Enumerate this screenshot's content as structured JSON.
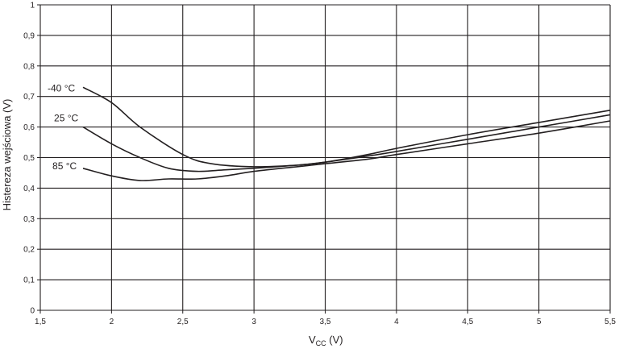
{
  "chart_data": {
    "type": "line",
    "ylabel": "Histereza wejściowa (V)",
    "xlabel_main": "V",
    "xlabel_sub": "CC",
    "xlabel_unit": " (V)",
    "xlim": [
      1.5,
      5.5
    ],
    "ylim": [
      0,
      1
    ],
    "grid": true,
    "xticks": [
      1.5,
      2,
      2.5,
      3,
      3.5,
      4,
      4.5,
      5,
      5.5
    ],
    "xtick_labels": [
      "1,5",
      "2",
      "2,5",
      "3",
      "3,5",
      "4",
      "4,5",
      "5",
      "5,5"
    ],
    "yticks": [
      0,
      0.1,
      0.2,
      0.3,
      0.4,
      0.5,
      0.6,
      0.7,
      0.8,
      0.9,
      1
    ],
    "ytick_labels": [
      "0",
      "0,1",
      "0,2",
      "0,3",
      "0,4",
      "0,5",
      "0,6",
      "0,7",
      "0,8",
      "0,9",
      "1"
    ],
    "series": [
      {
        "name": "-40 °C",
        "x": [
          1.8,
          2.0,
          2.2,
          2.5,
          2.7,
          3.0,
          3.3,
          3.5,
          3.8,
          4.0,
          4.5,
          5.0,
          5.5
        ],
        "y": [
          0.73,
          0.68,
          0.6,
          0.51,
          0.48,
          0.47,
          0.475,
          0.485,
          0.51,
          0.53,
          0.575,
          0.615,
          0.655
        ]
      },
      {
        "name": "25 °C",
        "x": [
          1.8,
          2.0,
          2.2,
          2.4,
          2.6,
          2.8,
          3.0,
          3.3,
          3.5,
          3.8,
          4.0,
          4.5,
          5.0,
          5.5
        ],
        "y": [
          0.6,
          0.545,
          0.5,
          0.465,
          0.455,
          0.46,
          0.465,
          0.475,
          0.485,
          0.505,
          0.52,
          0.56,
          0.6,
          0.64
        ]
      },
      {
        "name": "85 °C",
        "x": [
          1.8,
          2.0,
          2.2,
          2.4,
          2.6,
          2.8,
          3.0,
          3.3,
          3.5,
          3.8,
          4.0,
          4.5,
          5.0,
          5.5
        ],
        "y": [
          0.465,
          0.44,
          0.425,
          0.43,
          0.43,
          0.44,
          0.455,
          0.47,
          0.48,
          0.495,
          0.51,
          0.545,
          0.58,
          0.62
        ]
      }
    ]
  }
}
